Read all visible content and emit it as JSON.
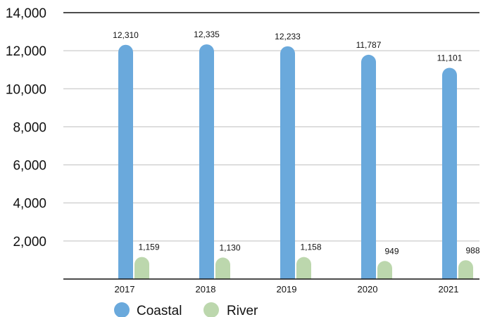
{
  "chart_data": {
    "type": "bar",
    "categories": [
      "2017",
      "2018",
      "2019",
      "2020",
      "2021"
    ],
    "series": [
      {
        "name": "Coastal",
        "values": [
          12310,
          12335,
          12233,
          11787,
          11101
        ],
        "labels": [
          "12,310",
          "12,335",
          "12,233",
          "11,787",
          "11,101"
        ],
        "color": "#6aa9dc"
      },
      {
        "name": "River",
        "values": [
          1159,
          1130,
          1158,
          949,
          988
        ],
        "labels": [
          "1,159",
          "1,130",
          "1,158",
          "949",
          "988"
        ],
        "color": "#bcd7ad"
      }
    ],
    "y_tick_labels": [
      "2,000",
      "4,000",
      "6,000",
      "8,000",
      "10,000",
      "12,000",
      "14,000"
    ],
    "y_tick_values": [
      2000,
      4000,
      6000,
      8000,
      10000,
      12000,
      14000
    ],
    "ylim": [
      0,
      14000
    ],
    "grid": true,
    "legend_position": "bottom-left",
    "title": "",
    "xlabel": "",
    "ylabel": ""
  }
}
